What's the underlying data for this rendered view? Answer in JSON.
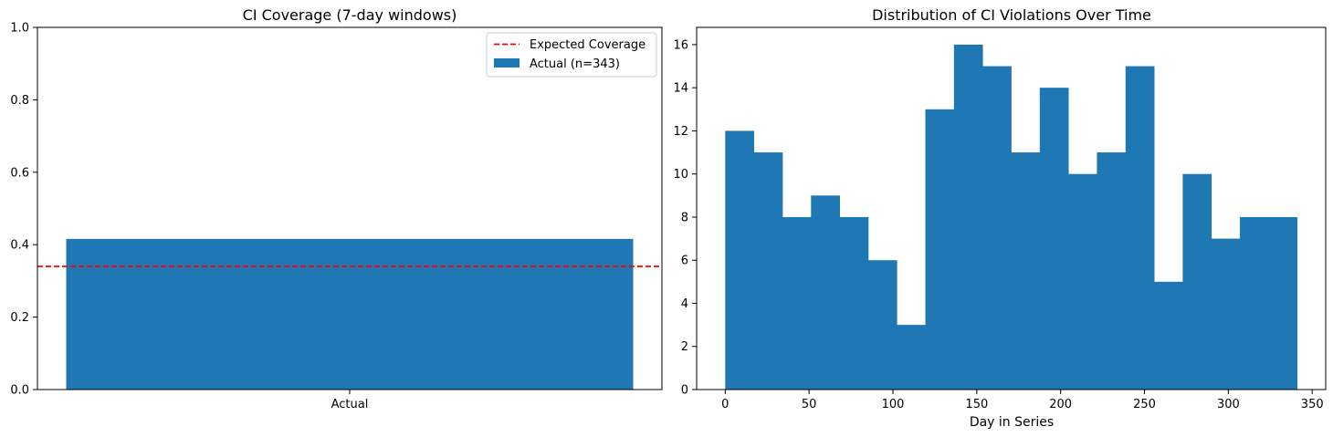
{
  "chart_data": [
    {
      "type": "bar",
      "title": "CI Coverage (7-day windows)",
      "xlabel": "",
      "ylabel": "",
      "categories": [
        "Actual"
      ],
      "values": [
        0.416
      ],
      "ylim": [
        0,
        1
      ],
      "yticks": [
        "0.0",
        "0.2",
        "0.4",
        "0.6",
        "0.8",
        "1.0"
      ],
      "reference_line": {
        "label": "Expected Coverage",
        "value": 0.34,
        "color": "#ff0000",
        "style": "dashed"
      },
      "bar_label": "Actual (n=343)",
      "bar_color": "#1f77b4",
      "legend": {
        "placement": "top-right",
        "entries": [
          "Expected Coverage",
          "Actual (n=343)"
        ]
      },
      "grid": false
    },
    {
      "type": "bar",
      "subtype": "histogram",
      "title": "Distribution of CI Violations Over Time",
      "xlabel": "Day in Series",
      "ylabel": "",
      "bin_start": 0,
      "bin_width": 17.05,
      "counts": [
        12,
        11,
        8,
        9,
        8,
        6,
        3,
        13,
        16,
        15,
        11,
        14,
        10,
        11,
        15,
        5,
        10,
        7,
        8,
        8
      ],
      "xlim": [
        -17.05,
        358.05
      ],
      "ylim": [
        0,
        16.8
      ],
      "xticks": [
        "0",
        "50",
        "100",
        "150",
        "200",
        "250",
        "300",
        "350"
      ],
      "yticks": [
        "0",
        "2",
        "4",
        "6",
        "8",
        "10",
        "12",
        "14",
        "16"
      ],
      "bar_color": "#1f77b4",
      "grid": false
    }
  ]
}
